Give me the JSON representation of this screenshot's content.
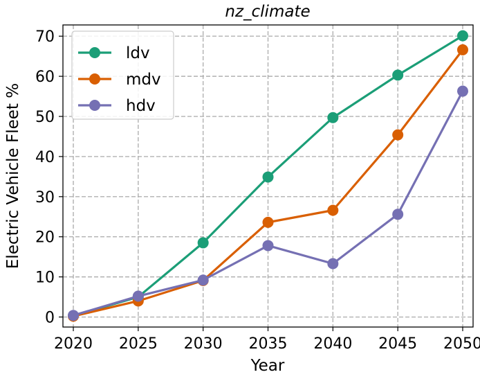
{
  "chart_data": {
    "type": "line",
    "title": "nz_climate",
    "xlabel": "Year",
    "ylabel": "Electric Vehicle Fleet %",
    "x": [
      2020,
      2025,
      2030,
      2035,
      2040,
      2045,
      2050
    ],
    "xlim": [
      2019.2,
      2050.8
    ],
    "ylim": [
      -2.5,
      72.8
    ],
    "xticks": [
      2020,
      2025,
      2030,
      2035,
      2040,
      2045,
      2050
    ],
    "yticks": [
      0,
      10,
      20,
      30,
      40,
      50,
      60,
      70
    ],
    "grid": true,
    "legend_position": "top-left",
    "series": [
      {
        "name": "ldv",
        "color": "#1b9e77",
        "values": [
          0.3,
          5.0,
          18.5,
          34.9,
          49.7,
          60.3,
          70.1
        ]
      },
      {
        "name": "mdv",
        "color": "#d95f02",
        "values": [
          0.2,
          4.0,
          9.1,
          23.6,
          26.6,
          45.4,
          66.6
        ]
      },
      {
        "name": "hdv",
        "color": "#7570b3",
        "values": [
          0.4,
          5.2,
          9.2,
          17.8,
          13.3,
          25.6,
          56.3
        ]
      }
    ]
  }
}
